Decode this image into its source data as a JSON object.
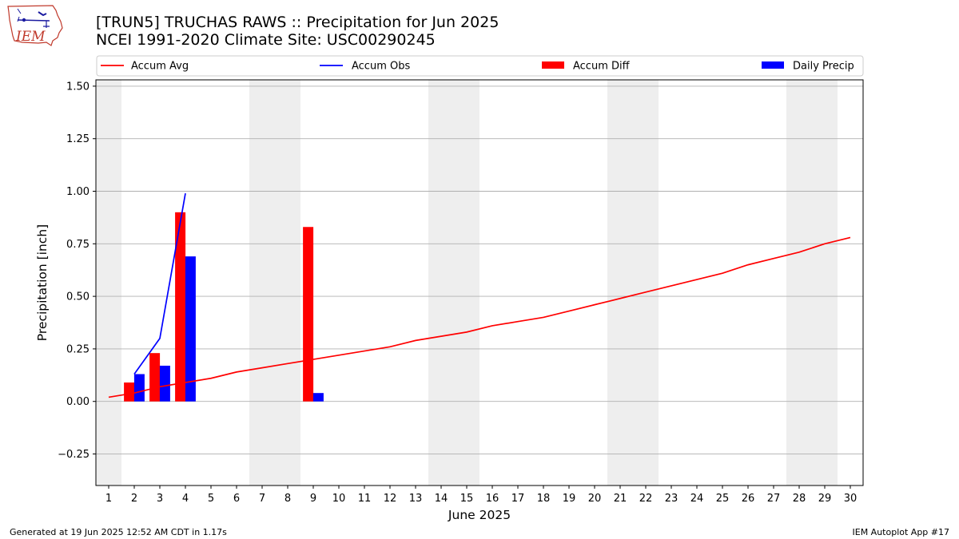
{
  "header": {
    "title_line1": "[TRUN5] TRUCHAS RAWS :: Precipitation for Jun 2025",
    "title_line2": "NCEI 1991-2020 Climate Site: USC00290245",
    "logo_text": "IEM"
  },
  "footer": {
    "generated": "Generated at 19 Jun 2025 12:52 AM CDT in 1.17s",
    "app": "IEM Autoplot App #17"
  },
  "chart_data": {
    "type": "bar",
    "xlabel": "June 2025",
    "ylabel": "Precipitation [inch]",
    "xlim": [
      0.5,
      30.5
    ],
    "ylim": [
      -0.4,
      1.53
    ],
    "yticks": [
      -0.25,
      0,
      0.25,
      0.5,
      0.75,
      1.0,
      1.25,
      1.5
    ],
    "ytick_labels": [
      "−0.25",
      "0.00",
      "0.25",
      "0.50",
      "0.75",
      "1.00",
      "1.25",
      "1.50"
    ],
    "x": [
      1,
      2,
      3,
      4,
      5,
      6,
      7,
      8,
      9,
      10,
      11,
      12,
      13,
      14,
      15,
      16,
      17,
      18,
      19,
      20,
      21,
      22,
      23,
      24,
      25,
      26,
      27,
      28,
      29,
      30
    ],
    "grid": "y",
    "legend_position": "top",
    "weekend_shading": [
      [
        0.5,
        1.5
      ],
      [
        6.5,
        8.5
      ],
      [
        13.5,
        15.5
      ],
      [
        20.5,
        22.5
      ],
      [
        27.5,
        29.5
      ]
    ],
    "series": [
      {
        "name": "Accum Avg",
        "kind": "line",
        "color": "#ff0000",
        "x": [
          1,
          2,
          3,
          4,
          5,
          6,
          7,
          8,
          9,
          10,
          11,
          12,
          13,
          14,
          15,
          16,
          17,
          18,
          19,
          20,
          21,
          22,
          23,
          24,
          25,
          26,
          27,
          28,
          29,
          30
        ],
        "values": [
          0.02,
          0.04,
          0.07,
          0.09,
          0.11,
          0.14,
          0.16,
          0.18,
          0.2,
          0.22,
          0.24,
          0.26,
          0.29,
          0.31,
          0.33,
          0.36,
          0.38,
          0.4,
          0.43,
          0.46,
          0.49,
          0.52,
          0.55,
          0.58,
          0.61,
          0.65,
          0.68,
          0.71,
          0.75,
          0.78
        ]
      },
      {
        "name": "Accum Obs",
        "kind": "line",
        "color": "#0000ff",
        "x": [
          2,
          3,
          4
        ],
        "values": [
          0.13,
          0.3,
          0.99
        ]
      },
      {
        "name": "Accum Diff",
        "kind": "bar",
        "color": "#ff0000",
        "offset": -0.2,
        "x": [
          2,
          3,
          4,
          9
        ],
        "values": [
          0.09,
          0.23,
          0.9,
          0.83
        ]
      },
      {
        "name": "Daily Precip",
        "kind": "bar",
        "color": "#0000ff",
        "offset": 0.2,
        "x": [
          2,
          3,
          4,
          9
        ],
        "values": [
          0.13,
          0.17,
          0.69,
          0.04
        ]
      }
    ]
  }
}
